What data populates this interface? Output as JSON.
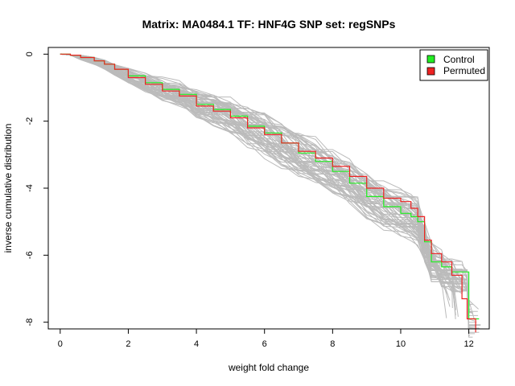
{
  "chart_data": {
    "type": "line",
    "title": "Matrix: MA0484.1 TF: HNF4G SNP set: regSNPs",
    "xlabel": "weight fold change",
    "ylabel": "inverse cumulative distribution",
    "xlim": [
      -0.35,
      12.6
    ],
    "ylim": [
      -8.2,
      0.2
    ],
    "xticks": [
      "0",
      "2",
      "4",
      "6",
      "8",
      "10",
      "12"
    ],
    "yticks": [
      "0",
      "-2",
      "-4",
      "-6",
      "-8"
    ],
    "grid": false,
    "legend": {
      "position": "top-right",
      "entries": [
        {
          "label": "Control",
          "color": "#22ee22"
        },
        {
          "label": "Permuted",
          "color": "#ee2222"
        }
      ]
    },
    "series": [
      {
        "name": "Control",
        "color": "#22ee22",
        "x": [
          0,
          0.3,
          0.6,
          1.0,
          1.3,
          1.6,
          2.0,
          2.5,
          3.0,
          3.5,
          4.0,
          4.5,
          5.0,
          5.5,
          6.0,
          6.5,
          7.0,
          7.5,
          8.0,
          8.5,
          9.0,
          9.5,
          10.0,
          10.3,
          10.5,
          10.7,
          10.9,
          11.2,
          11.5,
          11.8,
          11.95,
          12.0,
          12.3
        ],
        "y": [
          0,
          -0.03,
          -0.1,
          -0.2,
          -0.3,
          -0.45,
          -0.65,
          -0.85,
          -1.05,
          -1.2,
          -1.5,
          -1.65,
          -1.85,
          -2.15,
          -2.35,
          -2.65,
          -2.95,
          -3.2,
          -3.5,
          -3.85,
          -4.25,
          -4.55,
          -4.75,
          -4.85,
          -5.0,
          -5.6,
          -6.2,
          -6.35,
          -6.5,
          -6.5,
          -6.5,
          -7.9,
          -7.9
        ]
      },
      {
        "name": "Permuted",
        "color": "#ee2222",
        "x": [
          0,
          0.3,
          0.6,
          1.0,
          1.3,
          1.6,
          2.0,
          2.5,
          3.0,
          3.5,
          4.0,
          4.5,
          5.0,
          5.5,
          6.0,
          6.5,
          7.0,
          7.5,
          8.0,
          8.5,
          9.0,
          9.5,
          10.0,
          10.3,
          10.5,
          10.7,
          10.9,
          11.2,
          11.5,
          11.8,
          11.95,
          12.0,
          12.2
        ],
        "y": [
          0,
          -0.03,
          -0.1,
          -0.2,
          -0.3,
          -0.45,
          -0.7,
          -0.9,
          -1.1,
          -1.25,
          -1.55,
          -1.7,
          -1.9,
          -2.2,
          -2.4,
          -2.65,
          -2.9,
          -3.1,
          -3.35,
          -3.65,
          -4.0,
          -4.3,
          -4.4,
          -4.6,
          -4.85,
          -5.55,
          -5.95,
          -6.2,
          -6.6,
          -7.3,
          -7.9,
          -7.9,
          -8.3
        ]
      }
    ],
    "background_series_count": 60,
    "background_color": "#bbbbbb"
  }
}
